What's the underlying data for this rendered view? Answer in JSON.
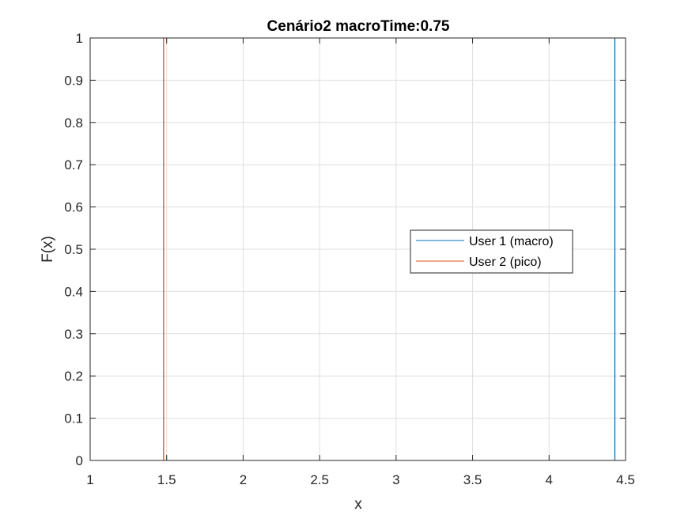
{
  "chart_data": {
    "type": "line",
    "title": "Cenário2 macroTime:0.75",
    "xlabel": "x",
    "ylabel": "F(x)",
    "xlim": [
      1,
      4.5
    ],
    "ylim": [
      0,
      1
    ],
    "xticks": [
      1,
      1.5,
      2,
      2.5,
      3,
      3.5,
      4,
      4.5
    ],
    "xtick_labels": [
      "1",
      "1.5",
      "2",
      "2.5",
      "3",
      "3.5",
      "4",
      "4.5"
    ],
    "yticks": [
      0,
      0.1,
      0.2,
      0.3,
      0.4,
      0.5,
      0.6,
      0.7,
      0.8,
      0.9,
      1
    ],
    "ytick_labels": [
      "0",
      "0.1",
      "0.2",
      "0.3",
      "0.4",
      "0.5",
      "0.6",
      "0.7",
      "0.8",
      "0.9",
      "1"
    ],
    "grid": true,
    "legend_position": "center-right",
    "series": [
      {
        "name": "User 1 (macro)",
        "color": "#0072BD",
        "x": [
          4.43,
          4.43
        ],
        "y": [
          0,
          1
        ]
      },
      {
        "name": "User 2 (pico)",
        "color": "#D95319",
        "x": [
          1.48,
          1.48
        ],
        "y": [
          0,
          1
        ]
      }
    ]
  }
}
